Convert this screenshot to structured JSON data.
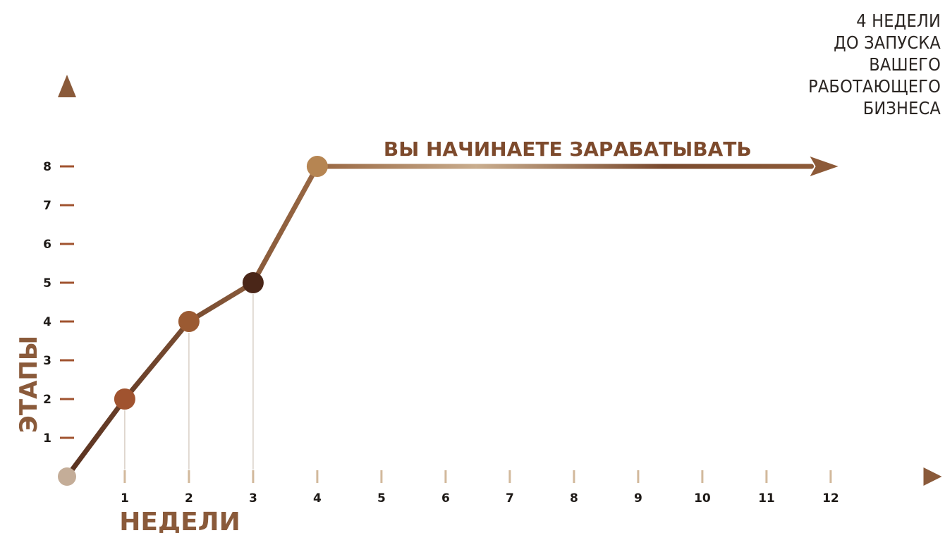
{
  "caption": {
    "lines": [
      "4 НЕДЕЛИ",
      "ДО ЗАПУСКА",
      "ВАШЕГО",
      "РАБОТАЮЩЕГО",
      "БИЗНЕСА"
    ]
  },
  "colors": {
    "axis": "#8a5a3a",
    "line": "#9b6a45",
    "line_light": "#d2b99c",
    "line_dark": "#4a2a18",
    "marker_1": "#a0532f",
    "marker_2": "#9b5a32",
    "marker_3": "#4a2618",
    "marker_4": "#b68552",
    "origin": "#c4ad98",
    "annotation": "#7d4a2c",
    "text": "#1e1a17"
  },
  "chart_data": {
    "type": "line",
    "title": "",
    "xlabel": "НЕДЕЛИ",
    "ylabel": "ЭТАПЫ",
    "x_ticks": [
      "1",
      "2",
      "3",
      "4",
      "5",
      "6",
      "7",
      "8",
      "9",
      "10",
      "11",
      "12"
    ],
    "y_ticks": [
      "1",
      "2",
      "3",
      "4",
      "5",
      "6",
      "7",
      "8"
    ],
    "xlim": [
      0,
      13.5
    ],
    "ylim": [
      0,
      10
    ],
    "grid": false,
    "series": [
      {
        "points": [
          {
            "x": 0,
            "y": 0
          },
          {
            "x": 0.9,
            "y": 2
          },
          {
            "x": 1.9,
            "y": 4
          },
          {
            "x": 2.9,
            "y": 5
          },
          {
            "x": 3.9,
            "y": 8
          },
          {
            "x": 11.6,
            "y": 8
          }
        ]
      }
    ],
    "markers": [
      {
        "x": 0,
        "y": 0
      },
      {
        "x": 0.9,
        "y": 2
      },
      {
        "x": 1.9,
        "y": 4
      },
      {
        "x": 2.9,
        "y": 5
      },
      {
        "x": 3.9,
        "y": 8
      }
    ],
    "annotations": [
      {
        "text": "ВЫ НАЧИНАЕТЕ ЗАРАБАТЫВАТЬ",
        "x": 7.8,
        "y": 8
      }
    ]
  }
}
